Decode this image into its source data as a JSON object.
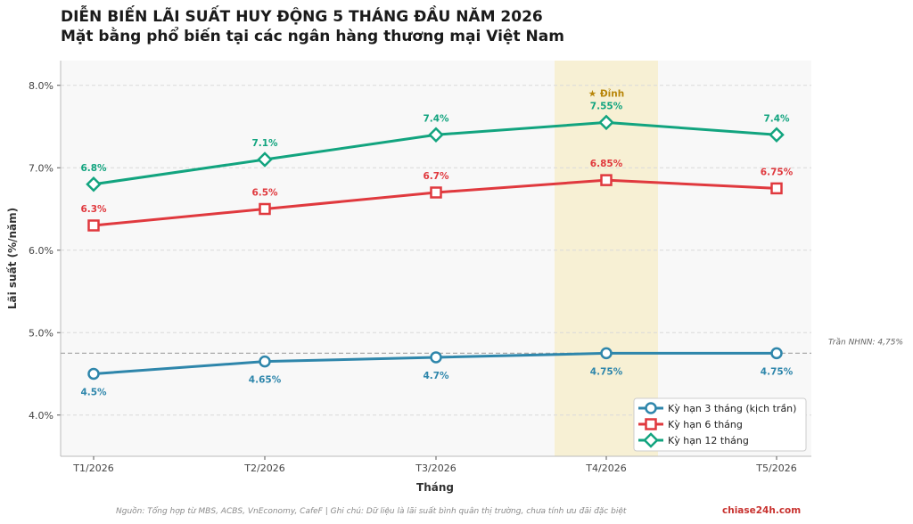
{
  "header": {
    "title_line1": "DIỄN BIẾN LÃI SUẤT HUY ĐỘNG 5 THÁNG ĐẦU NĂM 2026",
    "title_line2": "Mặt bằng phổ biến tại các ngân hàng thương mại Việt Nam"
  },
  "footer": {
    "source": "Nguồn: Tổng hợp từ MBS, ACBS, VnEconomy, CafeF | Ghi chú: Dữ liệu là lãi suất bình quân thị trường, chưa tính ưu đãi đặc biệt",
    "brand": "chiase24h.com"
  },
  "chart_data": {
    "type": "line",
    "xlabel": "Tháng",
    "ylabel": "Lãi suất (%/năm)",
    "categories": [
      "T1/2026",
      "T2/2026",
      "T3/2026",
      "T4/2026",
      "T5/2026"
    ],
    "ylim": [
      3.5,
      8.3
    ],
    "yticks": [
      4.0,
      5.0,
      6.0,
      7.0,
      8.0
    ],
    "ytick_labels": [
      "4.0%",
      "5.0%",
      "6.0%",
      "7.0%",
      "8.0%"
    ],
    "grid": true,
    "legend_position": "bottom-right",
    "series": [
      {
        "name": "Kỳ hạn 3 tháng (kịch trần)",
        "values": [
          4.5,
          4.65,
          4.7,
          4.75,
          4.75
        ],
        "labels": [
          "4.5%",
          "4.65%",
          "4.7%",
          "4.75%",
          "4.75%"
        ],
        "color": "#2e86ab",
        "marker": "circle",
        "label_position": "below"
      },
      {
        "name": "Kỳ hạn 6 tháng",
        "values": [
          6.3,
          6.5,
          6.7,
          6.85,
          6.75
        ],
        "labels": [
          "6.3%",
          "6.5%",
          "6.7%",
          "6.85%",
          "6.75%"
        ],
        "color": "#e0393e",
        "marker": "square",
        "label_position": "above"
      },
      {
        "name": "Kỳ hạn 12 tháng",
        "values": [
          6.8,
          7.1,
          7.4,
          7.55,
          7.4
        ],
        "labels": [
          "6.8%",
          "7.1%",
          "7.4%",
          "7.55%",
          "7.4%"
        ],
        "color": "#12a47f",
        "marker": "diamond",
        "label_position": "above"
      }
    ],
    "reference_line": {
      "value": 4.75,
      "label": "Trần NHNN: 4,75%",
      "color": "#aaaaaa"
    },
    "highlight": {
      "category_index": 3,
      "label": "★ Đỉnh",
      "color": "#f7f0d4",
      "label_color": "#b8860b"
    }
  }
}
